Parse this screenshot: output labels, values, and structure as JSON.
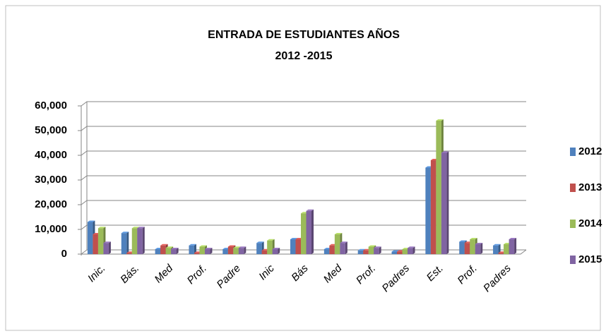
{
  "chart_data": {
    "type": "bar",
    "title": "ENTRADA DE ESTUDIANTES AÑOS",
    "subtitle": "2012 -2015",
    "categories": [
      "Inic.",
      "Bás.",
      "Med",
      "Prof.",
      "Padre",
      "Inic",
      "Bás",
      "Med",
      "Prof.",
      "Padres",
      "Est.",
      "Prof.",
      "Padres"
    ],
    "series": [
      {
        "name": "2012",
        "color": "#4f81bd",
        "values": [
          13000,
          8500,
          2000,
          3500,
          2000,
          4500,
          6000,
          2000,
          1500,
          1000,
          35000,
          5000,
          3500
        ]
      },
      {
        "name": "2013",
        "color": "#c0504d",
        "values": [
          8000,
          500,
          3500,
          500,
          3000,
          1500,
          6000,
          3500,
          1500,
          1000,
          38000,
          4500,
          500
        ]
      },
      {
        "name": "2014",
        "color": "#9bbb59",
        "values": [
          10500,
          10500,
          2500,
          3000,
          2500,
          5500,
          16500,
          8000,
          3000,
          2000,
          54000,
          6000,
          4000
        ]
      },
      {
        "name": "2015",
        "color": "#8064a2",
        "values": [
          4500,
          10500,
          2000,
          2000,
          2500,
          2000,
          17500,
          4500,
          2500,
          2500,
          41000,
          4000,
          6000
        ]
      }
    ],
    "ylim": [
      0,
      60000
    ],
    "yticks": [
      0,
      {
        "value": 10000,
        "label": "10,000"
      },
      {
        "value": 20000,
        "label": "20,000"
      },
      {
        "value": 30000,
        "label": "30,000"
      },
      {
        "value": 40000,
        "label": "40,000"
      },
      {
        "value": 50000,
        "label": "50,000"
      },
      {
        "value": 60000,
        "label": "60,000"
      }
    ],
    "grid": true,
    "legend": "right"
  }
}
